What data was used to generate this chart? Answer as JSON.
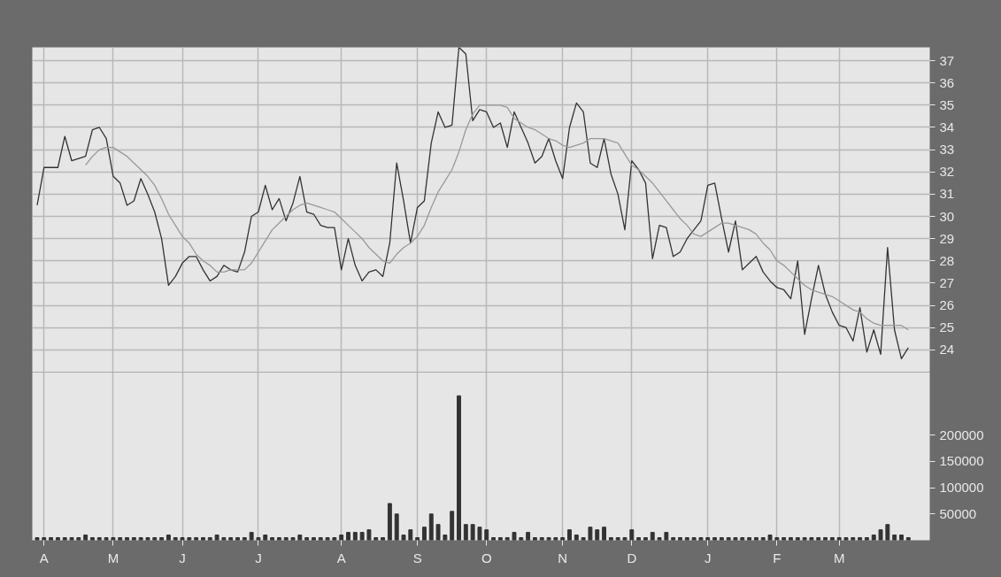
{
  "chart_data": [
    {
      "type": "line",
      "ylim": [
        23,
        37.6
      ],
      "categories": [
        null,
        null,
        null,
        null,
        null,
        null,
        null,
        null,
        null,
        null,
        null,
        null,
        null,
        null,
        null,
        null,
        null,
        null,
        null,
        null,
        null,
        null,
        null,
        null,
        null,
        null,
        null,
        null,
        null,
        null,
        null,
        null,
        null,
        null,
        null,
        null,
        null,
        null,
        null,
        null,
        null,
        null,
        null,
        null,
        null,
        null,
        null,
        null,
        null,
        null,
        null,
        null,
        null,
        null,
        null,
        null,
        null,
        null,
        null,
        null,
        null,
        null,
        null,
        null,
        null,
        null,
        null,
        null,
        null,
        null,
        null,
        null,
        null,
        null,
        null,
        null,
        null,
        null,
        null,
        null,
        null,
        null,
        null,
        null,
        null,
        null,
        null,
        null,
        null,
        null,
        null,
        null,
        null,
        null,
        null,
        null,
        null,
        null,
        null,
        null,
        null,
        null,
        null,
        null,
        null,
        null,
        null,
        null,
        null,
        null,
        null,
        null,
        null,
        null,
        null,
        null,
        null,
        null,
        null,
        null,
        null,
        null,
        null,
        null,
        null,
        null,
        null
      ],
      "yticks": [
        24,
        25,
        26,
        27,
        28,
        29,
        30,
        31,
        32,
        33,
        34,
        35,
        36,
        37
      ],
      "tick_labels": "y",
      "grid": true,
      "series": [
        {
          "color": "#333333",
          "values": [
            30.5,
            32.2,
            32.2,
            32.2,
            33.6,
            32.5,
            32.6,
            32.7,
            33.9,
            34.0,
            33.5,
            31.8,
            31.5,
            30.5,
            30.7,
            31.7,
            31.0,
            30.2,
            29.0,
            26.9,
            27.3,
            27.9,
            28.2,
            28.2,
            27.6,
            27.1,
            27.3,
            27.8,
            27.6,
            27.5,
            28.4,
            30.0,
            30.2,
            31.4,
            30.3,
            30.8,
            29.8,
            30.6,
            31.8,
            30.2,
            30.1,
            29.6,
            29.5,
            29.5,
            27.6,
            29.0,
            27.8,
            27.1,
            27.5,
            27.6,
            27.3,
            28.8,
            32.4,
            30.7,
            28.8,
            30.4,
            30.7,
            33.3,
            34.7,
            34.0,
            34.1,
            37.6,
            37.3,
            34.3,
            34.8,
            34.7,
            34.0,
            34.2,
            33.1,
            34.7,
            34.0,
            33.3,
            32.4,
            32.7,
            33.5,
            32.5,
            31.7,
            34.0,
            35.1,
            34.7,
            32.4,
            32.2,
            33.5,
            31.9,
            31.0,
            29.4,
            32.5,
            32.1,
            31.5,
            28.1,
            29.6,
            29.5,
            28.2,
            28.4,
            29.0,
            29.4,
            29.8,
            31.4,
            31.5,
            29.9,
            28.4,
            29.8,
            27.6,
            27.9,
            28.2,
            27.5,
            27.1,
            26.8,
            26.7,
            26.3,
            28.0,
            24.7,
            26.3,
            27.8,
            26.5,
            25.7,
            25.1,
            25.0,
            24.4,
            25.9,
            23.9,
            24.9,
            23.8,
            28.6,
            24.9,
            23.6,
            24.1
          ]
        },
        {
          "color": "#999999",
          "values": [
            null,
            null,
            null,
            null,
            null,
            null,
            null,
            32.3,
            32.7,
            33.0,
            33.1,
            33.1,
            32.9,
            32.7,
            32.4,
            32.1,
            31.8,
            31.4,
            30.8,
            30.1,
            29.6,
            29.1,
            28.8,
            28.3,
            28.0,
            27.8,
            27.5,
            27.5,
            27.6,
            27.6,
            27.6,
            27.9,
            28.4,
            28.9,
            29.4,
            29.7,
            30.0,
            30.3,
            30.5,
            30.6,
            30.5,
            30.4,
            30.3,
            30.2,
            29.9,
            29.6,
            29.3,
            29.0,
            28.6,
            28.3,
            28.0,
            27.9,
            28.3,
            28.6,
            28.8,
            29.1,
            29.6,
            30.4,
            31.1,
            31.6,
            32.1,
            32.9,
            33.9,
            34.6,
            35.0,
            35.0,
            35.0,
            35.0,
            34.9,
            34.4,
            34.2,
            34.0,
            33.9,
            33.7,
            33.5,
            33.4,
            33.2,
            33.1,
            33.2,
            33.3,
            33.5,
            33.5,
            33.5,
            33.4,
            33.3,
            32.8,
            32.3,
            32.1,
            31.8,
            31.5,
            31.1,
            30.7,
            30.3,
            29.9,
            29.6,
            29.2,
            29.1,
            29.3,
            29.5,
            29.7,
            29.7,
            29.6,
            29.5,
            29.4,
            29.2,
            28.8,
            28.5,
            28.0,
            27.8,
            27.5,
            27.2,
            26.9,
            26.7,
            26.6,
            26.5,
            26.4,
            26.2,
            26.0,
            25.8,
            25.7,
            25.4,
            25.2,
            25.1,
            25.1,
            25.1,
            25.1,
            24.9
          ]
        }
      ]
    },
    {
      "type": "bar",
      "ylim": [
        0,
        320000
      ],
      "categories": [
        null,
        "A",
        null,
        null,
        null,
        null,
        null,
        null,
        null,
        null,
        null,
        "M",
        null,
        null,
        null,
        null,
        null,
        null,
        null,
        null,
        null,
        "J",
        null,
        null,
        null,
        null,
        null,
        null,
        null,
        null,
        null,
        null,
        "J",
        null,
        null,
        null,
        null,
        null,
        null,
        null,
        null,
        null,
        null,
        null,
        "A",
        null,
        null,
        null,
        null,
        null,
        null,
        null,
        null,
        null,
        null,
        "S",
        null,
        null,
        null,
        null,
        null,
        null,
        null,
        null,
        null,
        "O",
        null,
        null,
        null,
        null,
        null,
        null,
        null,
        null,
        null,
        null,
        "N",
        null,
        null,
        null,
        null,
        null,
        null,
        null,
        null,
        null,
        "D",
        null,
        null,
        null,
        null,
        null,
        null,
        null,
        null,
        null,
        null,
        "J",
        null,
        null,
        null,
        null,
        null,
        null,
        null,
        null,
        null,
        "F",
        null,
        null,
        null,
        null,
        null,
        null,
        null,
        null,
        "M",
        null,
        null,
        null,
        null,
        null,
        null,
        null,
        null,
        null,
        null
      ],
      "yticks": [
        50000,
        100000,
        150000,
        200000
      ],
      "grid": "x",
      "series": [
        {
          "color": "#333333",
          "values": [
            5000,
            5000,
            5000,
            5000,
            5000,
            5000,
            5000,
            10000,
            5000,
            5000,
            5000,
            5000,
            5000,
            5000,
            5000,
            5000,
            5000,
            5000,
            5000,
            10000,
            5000,
            5000,
            5000,
            5000,
            5000,
            5000,
            10000,
            5000,
            5000,
            5000,
            5000,
            15000,
            5000,
            10000,
            5000,
            5000,
            5000,
            5000,
            10000,
            5000,
            5000,
            5000,
            5000,
            5000,
            10000,
            15000,
            15000,
            15000,
            20000,
            5000,
            5000,
            70000,
            50000,
            10000,
            20000,
            5000,
            25000,
            50000,
            30000,
            10000,
            55000,
            275000,
            30000,
            30000,
            25000,
            20000,
            5000,
            5000,
            5000,
            15000,
            5000,
            15000,
            5000,
            5000,
            5000,
            5000,
            5000,
            20000,
            10000,
            5000,
            25000,
            20000,
            25000,
            5000,
            5000,
            5000,
            20000,
            5000,
            5000,
            15000,
            5000,
            15000,
            5000,
            5000,
            5000,
            5000,
            5000,
            5000,
            5000,
            5000,
            5000,
            5000,
            5000,
            5000,
            5000,
            5000,
            10000,
            5000,
            5000,
            5000,
            5000,
            5000,
            5000,
            5000,
            5000,
            5000,
            5000,
            5000,
            5000,
            5000,
            5000,
            10000,
            20000,
            30000,
            10000,
            10000,
            5000
          ]
        }
      ]
    }
  ]
}
